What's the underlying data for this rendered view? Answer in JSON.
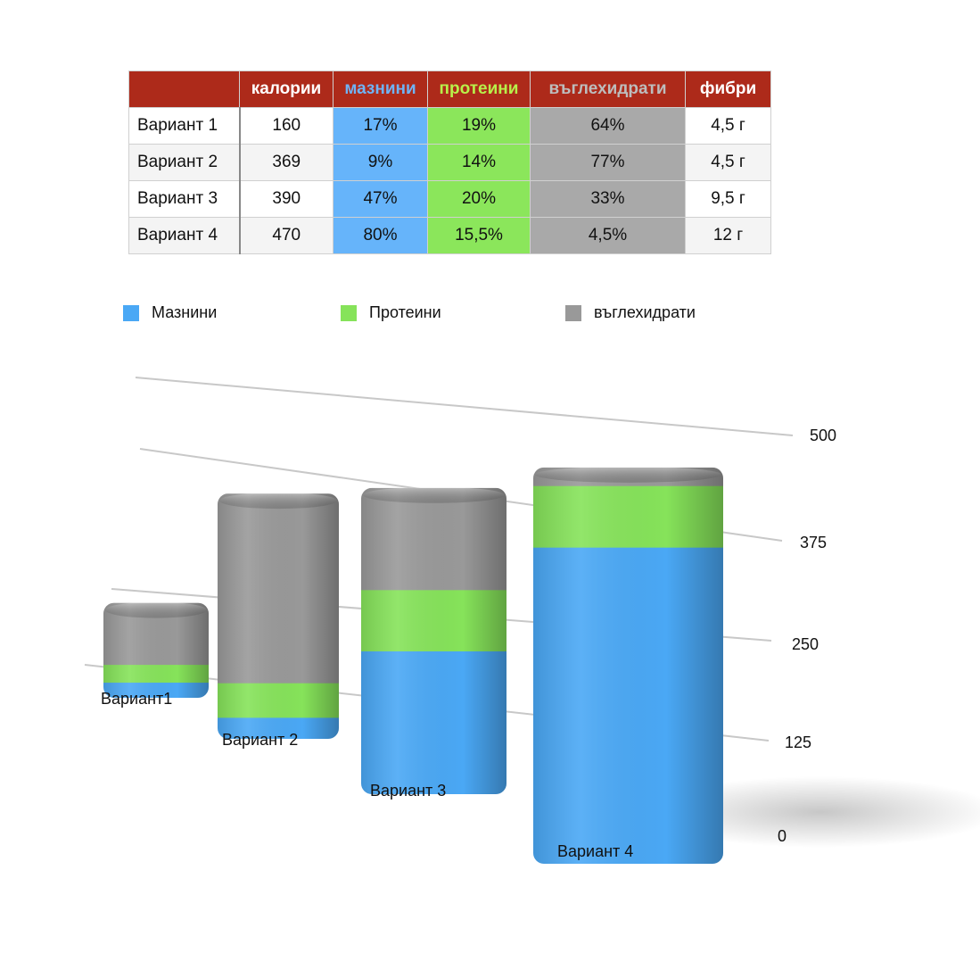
{
  "table": {
    "headers": [
      "",
      "калории",
      "мазнини",
      "протеини",
      "въглехидрати",
      "фибри"
    ],
    "header_colors": [
      "#ffffff",
      "#ffffff",
      "#6fb3f5",
      "#b8f04a",
      "#bdbdbd",
      "#ffffff"
    ],
    "rows": [
      {
        "label": "Вариант 1",
        "cells": [
          "160",
          "17%",
          "19%",
          "64%",
          "4,5 г"
        ]
      },
      {
        "label": "Вариант 2",
        "cells": [
          "369",
          "9%",
          "14%",
          "77%",
          "4,5 г"
        ]
      },
      {
        "label": "Вариант 3",
        "cells": [
          "390",
          "47%",
          "20%",
          "33%",
          "9,5 г"
        ]
      },
      {
        "label": "Вариант 4",
        "cells": [
          "470",
          "80%",
          "15,5%",
          "4,5%",
          "12 г"
        ]
      }
    ]
  },
  "chart_data": {
    "type": "bar",
    "stacked": true,
    "categories": [
      "Вариант1",
      "Вариант 2",
      "Вариант 3",
      "Вариант 4"
    ],
    "series": [
      {
        "name": "Мазнини",
        "color": "#4aa8f5",
        "values": [
          27,
          33,
          183,
          376
        ]
      },
      {
        "name": "Протеини",
        "color": "#86e35a",
        "values": [
          30,
          52,
          78,
          73
        ]
      },
      {
        "name": "въглехидрати",
        "color": "#999999",
        "values": [
          103,
          284,
          129,
          21
        ]
      }
    ],
    "y_ticks": [
      "0",
      "125",
      "250",
      "375",
      "500"
    ],
    "ylim": [
      0,
      500
    ],
    "legend_position": "top-left",
    "grid": true
  }
}
